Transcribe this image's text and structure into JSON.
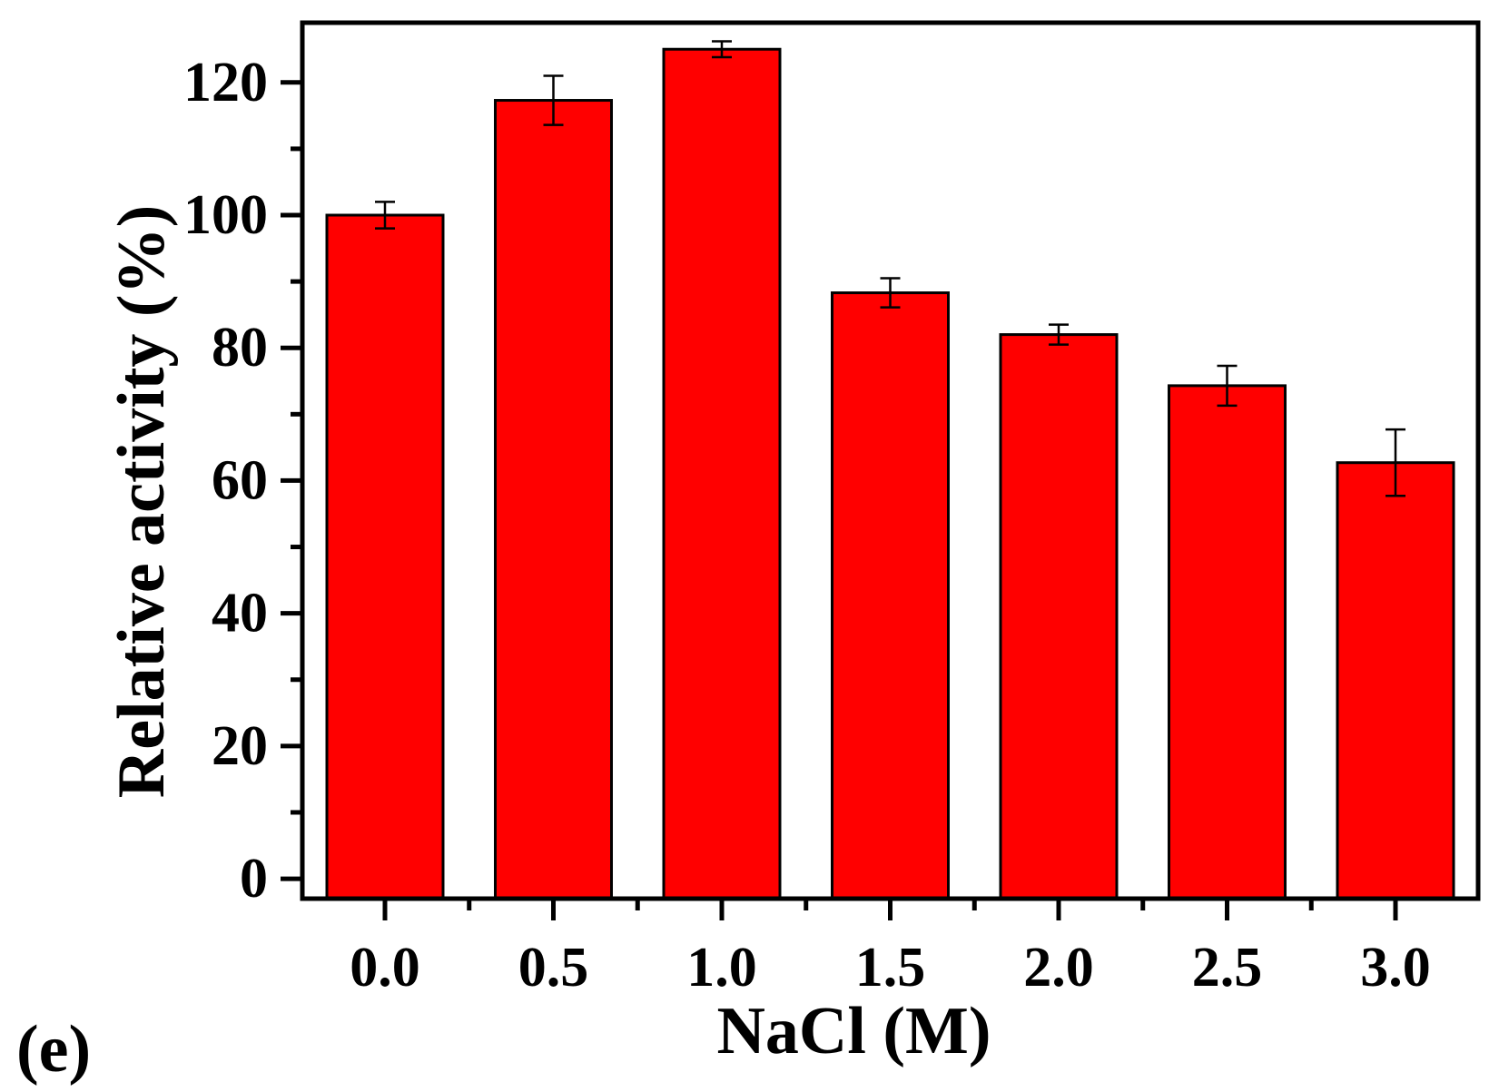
{
  "panel_label": "(e)",
  "chart_data": {
    "type": "bar",
    "categories": [
      "0.0",
      "0.5",
      "1.0",
      "1.5",
      "2.0",
      "2.5",
      "3.0"
    ],
    "values": [
      100,
      117.3,
      125,
      88.3,
      82,
      74.3,
      62.7
    ],
    "errors": [
      2,
      3.7,
      1.2,
      2.2,
      1.5,
      3,
      5
    ],
    "xlabel": "NaCl (M)",
    "ylabel": "Relative activity (%)",
    "ylim": [
      -3,
      129
    ],
    "yticks": [
      0,
      20,
      40,
      60,
      80,
      100,
      120
    ],
    "grid": false,
    "bar_color": "#ff0000",
    "edge_color": "#000000"
  }
}
